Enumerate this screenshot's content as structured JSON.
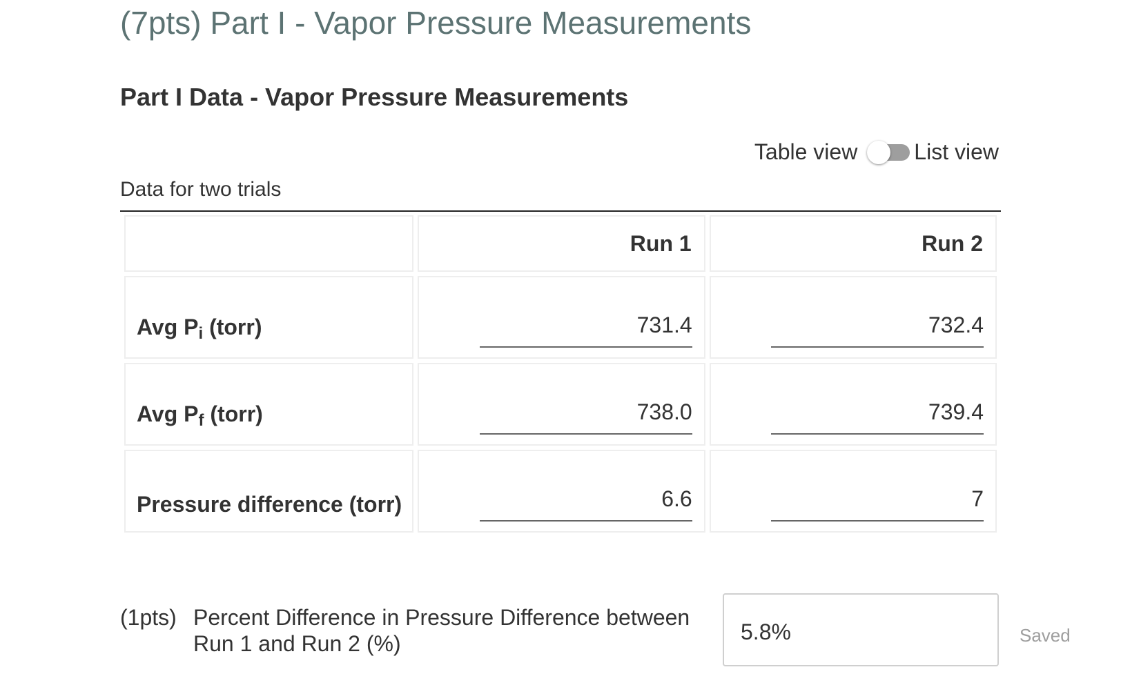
{
  "section_title": "(7pts) Part I - Vapor Pressure Measurements",
  "data_heading": "Part I Data - Vapor Pressure Measurements",
  "view_toggle": {
    "left_label": "Table view",
    "right_label": "List view",
    "state": "table"
  },
  "table": {
    "caption": "Data for two trials",
    "columns": [
      "",
      "Run 1",
      "Run 2"
    ],
    "rows": [
      {
        "label_main": "Avg P",
        "label_sub": "i",
        "label_unit": " (torr)",
        "run1": "731.4",
        "run2": "732.4"
      },
      {
        "label_main": "Avg P",
        "label_sub": "f",
        "label_unit": " (torr)",
        "run1": "738.0",
        "run2": "739.4"
      },
      {
        "label_main": "Pressure difference (torr)",
        "label_sub": "",
        "label_unit": "",
        "run1": "6.6",
        "run2": "7"
      }
    ]
  },
  "question": {
    "points": "(1pts)",
    "text": "Percent Difference in Pressure Difference between Run 1 and Run 2 (%)",
    "answer": "5.8%",
    "status": "Saved"
  }
}
